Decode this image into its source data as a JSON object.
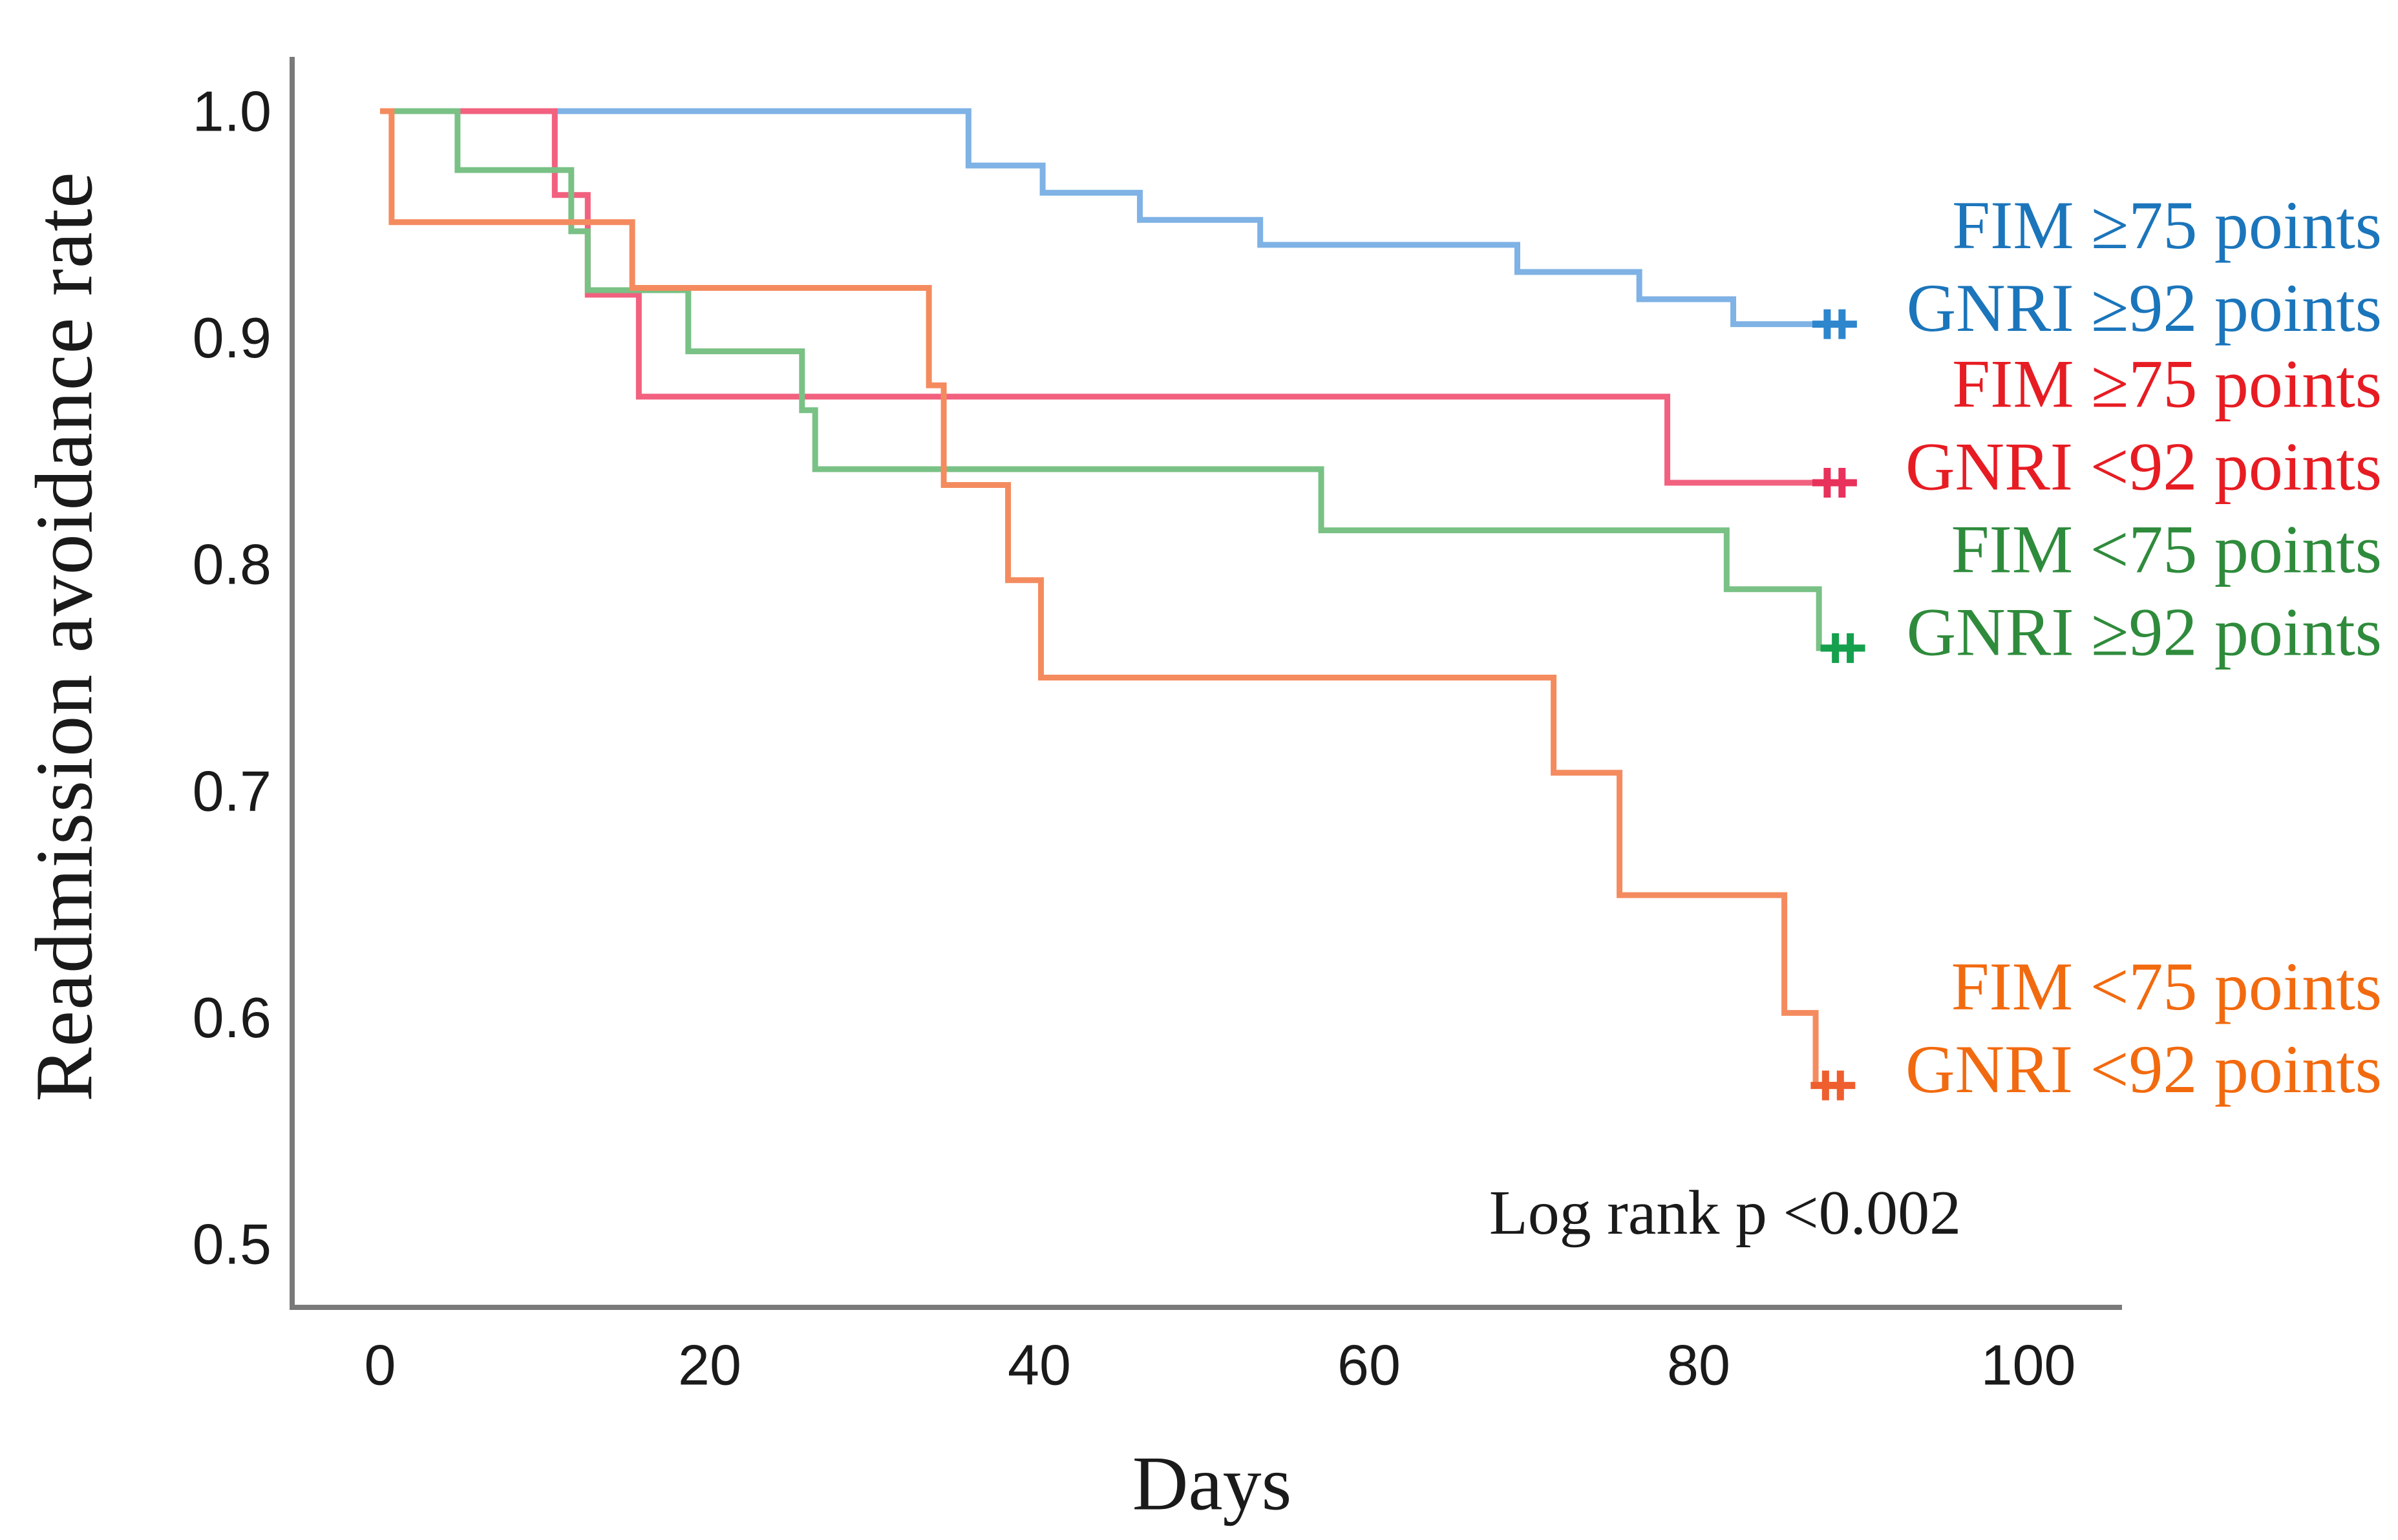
{
  "page": {
    "background": "#ffffff",
    "axis_color": "#7a7a7a",
    "text_color": "#1a1a1a"
  },
  "chart_data": {
    "type": "line",
    "subtype": "kaplan-meier-step-survival",
    "title": "",
    "xlabel": "Days",
    "ylabel": "Readmission avoidance rate",
    "annotation": "Log rank p <0.002",
    "xlim": [
      -5.3,
      105.7
    ],
    "ylim": [
      0.472,
      1.024
    ],
    "x_ticks": [
      0,
      20,
      40,
      60,
      80,
      100
    ],
    "y_ticks": [
      "1.0",
      "0.9",
      "0.8",
      "0.7",
      "0.6",
      "0.5"
    ],
    "y_tick_values": [
      1.0,
      0.9,
      0.8,
      0.7,
      0.6,
      0.5
    ],
    "grid": false,
    "legend_position": "right",
    "series": [
      {
        "name": "FIM >=75 / GNRI >=92",
        "legend_line1": "FIM ≥75 points",
        "legend_line2": "GNRI ≥92 points",
        "color": "#7FB2E5",
        "censor_color": "#2E86CD",
        "text_color": "#1B75BB",
        "points": [
          [
            0,
            1.0
          ],
          [
            35.7,
            0.976
          ],
          [
            40.2,
            0.964
          ],
          [
            46.1,
            0.952
          ],
          [
            53.4,
            0.941
          ],
          [
            69.0,
            0.929
          ],
          [
            76.4,
            0.917
          ],
          [
            82.1,
            0.906
          ],
          [
            89.6,
            0.906
          ]
        ],
        "censors": [
          [
            87.8,
            0.906
          ],
          [
            88.7,
            0.906
          ]
        ]
      },
      {
        "name": "FIM >=75 / GNRI <92",
        "legend_line1": "FIM ≥75 points",
        "legend_line2": "GNRI <92 points",
        "color": "#F2617F",
        "censor_color": "#E8315B",
        "text_color": "#E71C23",
        "points": [
          [
            0,
            1.0
          ],
          [
            10.6,
            0.963
          ],
          [
            12.6,
            0.919
          ],
          [
            15.7,
            0.874
          ],
          [
            78.1,
            0.836
          ],
          [
            89.6,
            0.836
          ]
        ],
        "censors": [
          [
            87.8,
            0.836
          ],
          [
            88.7,
            0.836
          ]
        ]
      },
      {
        "name": "FIM <75 / GNRI >=92",
        "legend_line1": "FIM <75 points",
        "legend_line2": "GNRI ≥92 points",
        "color": "#79C185",
        "censor_color": "#14A04D",
        "text_color": "#2F8B3C",
        "points": [
          [
            0,
            1.0
          ],
          [
            4.7,
            0.974
          ],
          [
            11.6,
            0.947
          ],
          [
            12.6,
            0.921
          ],
          [
            18.7,
            0.894
          ],
          [
            25.6,
            0.868
          ],
          [
            26.4,
            0.842
          ],
          [
            57.1,
            0.815
          ],
          [
            81.7,
            0.789
          ],
          [
            87.3,
            0.763
          ],
          [
            89.9,
            0.763
          ]
        ],
        "censors": [
          [
            88.3,
            0.763
          ],
          [
            89.2,
            0.763
          ]
        ]
      },
      {
        "name": "FIM <75 / GNRI <92",
        "legend_line1": "FIM <75 points",
        "legend_line2": "GNRI <92 points",
        "color": "#F48B5F",
        "censor_color": "#EF5E2E",
        "text_color": "#F26A0F",
        "points": [
          [
            0,
            1.0
          ],
          [
            0.7,
            0.951
          ],
          [
            15.3,
            0.922
          ],
          [
            33.3,
            0.879
          ],
          [
            34.2,
            0.835
          ],
          [
            38.1,
            0.793
          ],
          [
            40.1,
            0.75
          ],
          [
            71.2,
            0.708
          ],
          [
            75.2,
            0.654
          ],
          [
            85.2,
            0.602
          ],
          [
            87.1,
            0.57
          ],
          [
            89.4,
            0.57
          ]
        ],
        "censors": [
          [
            87.7,
            0.57
          ],
          [
            88.6,
            0.57
          ]
        ]
      }
    ]
  }
}
